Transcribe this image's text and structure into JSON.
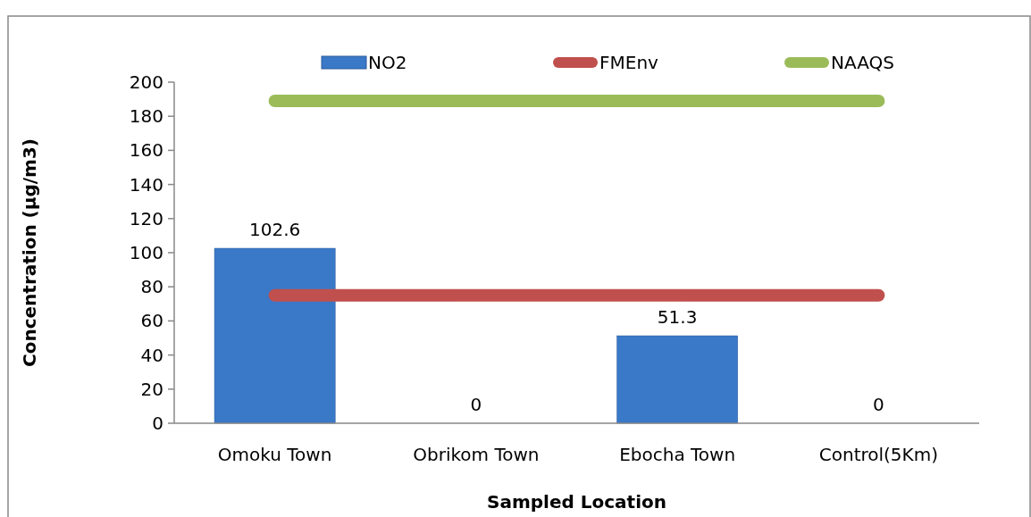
{
  "chart_data": {
    "type": "bar",
    "xlabel": "Sampled Location",
    "ylabel": "Concentration (µg/m3)",
    "categories": [
      "Omoku Town",
      "Obrikom Town",
      "Ebocha Town",
      "Control(5Km)"
    ],
    "series": [
      {
        "name": "NO2",
        "color": "#3a78c8",
        "values": [
          102.6,
          0,
          51.3,
          0
        ],
        "value_labels": [
          "102.6",
          "0",
          "51.3",
          "0"
        ]
      },
      {
        "name": "FMEnv",
        "type": "line",
        "color": "#c0504d",
        "values": [
          75,
          75,
          75,
          75
        ]
      },
      {
        "name": "NAAQS",
        "type": "line",
        "color": "#9bbb59",
        "values": [
          189,
          189,
          189,
          189
        ]
      }
    ],
    "ylim": [
      0,
      200
    ],
    "yticks": [
      0,
      20,
      40,
      60,
      80,
      100,
      120,
      140,
      160,
      180,
      200
    ],
    "legend": "top",
    "grid": false
  }
}
